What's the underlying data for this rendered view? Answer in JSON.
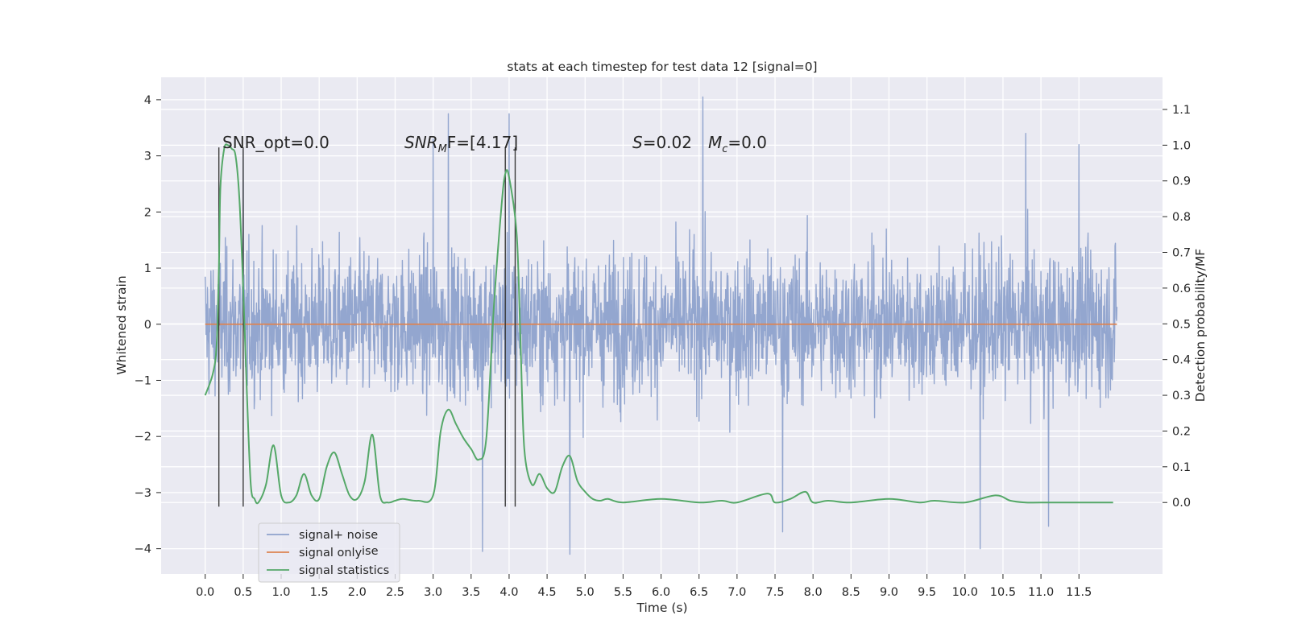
{
  "chart_data": {
    "type": "line",
    "title": "stats at each timestep for test data 12 [signal=0]",
    "xlabel": "Time (s)",
    "ylabel": "Whitened strain",
    "y2label": "Detection probability/MF",
    "xlim": [
      -0.58,
      12.6
    ],
    "ylim": [
      -4.45,
      4.4
    ],
    "y2lim": [
      -0.2,
      1.19
    ],
    "x_ticks": [
      "0.0",
      "0.5",
      "1.0",
      "1.5",
      "2.0",
      "2.5",
      "3.0",
      "3.5",
      "4.0",
      "4.5",
      "5.0",
      "5.5",
      "6.0",
      "6.5",
      "7.0",
      "7.5",
      "8.0",
      "8.5",
      "9.0",
      "9.5",
      "10.0",
      "10.5",
      "11.0",
      "11.5"
    ],
    "y_ticks": [
      "4",
      "3",
      "2",
      "1",
      "0",
      "−1",
      "−2",
      "−3",
      "−4"
    ],
    "y2_ticks": [
      "1.1",
      "1.0",
      "0.9",
      "0.8",
      "0.7",
      "0.6",
      "0.5",
      "0.4",
      "0.3",
      "0.2",
      "0.1",
      "0.0"
    ],
    "grid": true,
    "legend_position": "lower-left",
    "legend_ghost_text": "ise",
    "series": [
      {
        "name": "signal+ noise",
        "color": "#8ea2cc",
        "axis": "left",
        "kind": "noise",
        "x_range": [
          0.0,
          12.0
        ],
        "envelope": [
          -2.9,
          2.9
        ],
        "peaks": [
          {
            "x": 0.5,
            "y": 3.1
          },
          {
            "x": 3.0,
            "y": 3.3
          },
          {
            "x": 3.2,
            "y": 3.75
          },
          {
            "x": 4.0,
            "y": 3.75
          },
          {
            "x": 6.55,
            "y": 4.05
          },
          {
            "x": 3.65,
            "y": -4.05
          },
          {
            "x": 4.8,
            "y": -4.1
          },
          {
            "x": 10.2,
            "y": -4.0
          },
          {
            "x": 10.8,
            "y": 3.4
          },
          {
            "x": 11.1,
            "y": -3.6
          },
          {
            "x": 7.6,
            "y": -3.7
          },
          {
            "x": 11.5,
            "y": 3.2
          }
        ]
      },
      {
        "name": "signal only",
        "color": "#dd8452",
        "axis": "left",
        "x": [
          0.0,
          12.0
        ],
        "y": [
          0.0,
          0.0
        ]
      },
      {
        "name": "signal statistics",
        "color": "#55a868",
        "axis": "right",
        "x": [
          0.0,
          0.1,
          0.15,
          0.18,
          0.2,
          0.25,
          0.3,
          0.35,
          0.4,
          0.45,
          0.5,
          0.55,
          0.6,
          0.65,
          0.7,
          0.8,
          0.9,
          1.0,
          1.1,
          1.2,
          1.3,
          1.4,
          1.5,
          1.6,
          1.7,
          1.8,
          1.9,
          2.0,
          2.1,
          2.2,
          2.3,
          2.4,
          2.5,
          2.6,
          2.8,
          3.0,
          3.1,
          3.2,
          3.3,
          3.4,
          3.5,
          3.6,
          3.7,
          3.8,
          3.9,
          3.95,
          4.0,
          4.1,
          4.15,
          4.2,
          4.3,
          4.4,
          4.5,
          4.6,
          4.7,
          4.8,
          4.9,
          5.0,
          5.1,
          5.2,
          5.3,
          5.5,
          6.0,
          6.5,
          6.8,
          7.0,
          7.4,
          7.5,
          7.7,
          7.9,
          8.0,
          8.2,
          8.5,
          9.0,
          9.4,
          9.6,
          10.0,
          10.4,
          10.6,
          10.8,
          11.0,
          11.5,
          11.95
        ],
        "y": [
          0.3,
          0.36,
          0.44,
          0.65,
          0.88,
          0.99,
          1.0,
          0.99,
          0.97,
          0.85,
          0.6,
          0.3,
          0.05,
          0.01,
          0.0,
          0.05,
          0.16,
          0.02,
          0.0,
          0.02,
          0.08,
          0.02,
          0.01,
          0.1,
          0.14,
          0.08,
          0.02,
          0.01,
          0.06,
          0.19,
          0.02,
          0.0,
          0.005,
          0.01,
          0.005,
          0.02,
          0.2,
          0.26,
          0.22,
          0.18,
          0.15,
          0.12,
          0.18,
          0.55,
          0.83,
          0.92,
          0.91,
          0.75,
          0.45,
          0.15,
          0.05,
          0.08,
          0.04,
          0.03,
          0.1,
          0.13,
          0.06,
          0.03,
          0.01,
          0.005,
          0.01,
          0.0,
          0.01,
          0.0,
          0.005,
          0.0,
          0.025,
          0.0,
          0.01,
          0.03,
          0.0,
          0.005,
          0.0,
          0.01,
          0.0,
          0.005,
          0.0,
          0.02,
          0.005,
          0.0,
          0.0,
          0.0,
          0.0
        ]
      }
    ],
    "vertical_lines": [
      0.18,
      0.5,
      3.95,
      4.08
    ],
    "annotations": {
      "snr_opt": "SNR_opt=0.0",
      "snr_mf": {
        "main": "SNR",
        "sub": "M",
        "rest": "F=[4.17]"
      },
      "s_stat": {
        "main": "S",
        "rest": "=0.02"
      },
      "mc": {
        "main": "M",
        "sub": "c",
        "rest": "=0.0"
      }
    }
  }
}
